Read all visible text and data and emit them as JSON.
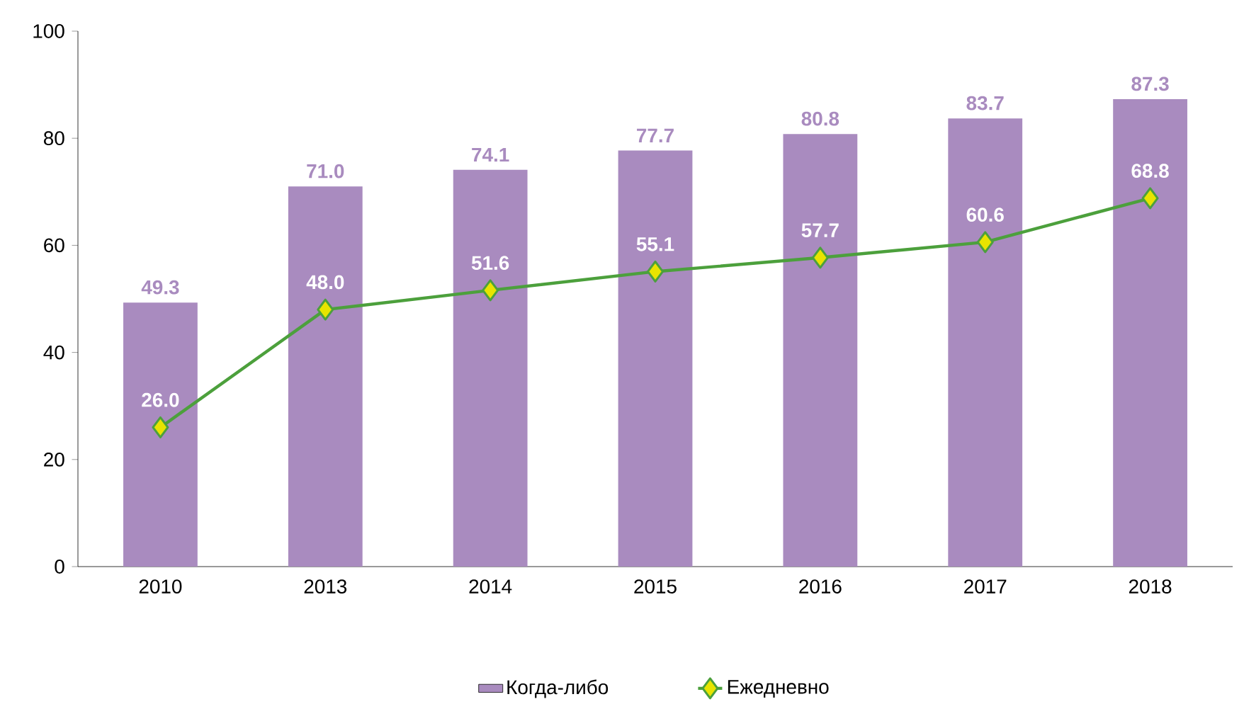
{
  "chart_data": {
    "type": "bar",
    "categories": [
      "2010",
      "2013",
      "2014",
      "2015",
      "2016",
      "2017",
      "2018"
    ],
    "series": [
      {
        "name": "Когда-либо",
        "color": "#a98bbf",
        "values": [
          49.3,
          71.0,
          74.1,
          77.7,
          80.8,
          83.7,
          87.3
        ],
        "value_labels": [
          "49.3",
          "71.0",
          "74.1",
          "77.7",
          "80.8",
          "83.7",
          "87.3"
        ]
      },
      {
        "name": "Ежедневно",
        "type": "line",
        "color": "#4ca03c",
        "marker": "diamond",
        "line_style": "solid",
        "values": [
          26.0,
          48.0,
          51.6,
          55.1,
          57.7,
          60.6,
          68.8
        ],
        "value_labels": [
          "26.0",
          "48.0",
          "51.6",
          "55.1",
          "57.7",
          "60.6",
          "68.8"
        ]
      }
    ],
    "ylim": [
      0,
      100
    ],
    "yticks": [
      0,
      20,
      40,
      60,
      80,
      100
    ],
    "legend": "bottom",
    "grid": false
  }
}
